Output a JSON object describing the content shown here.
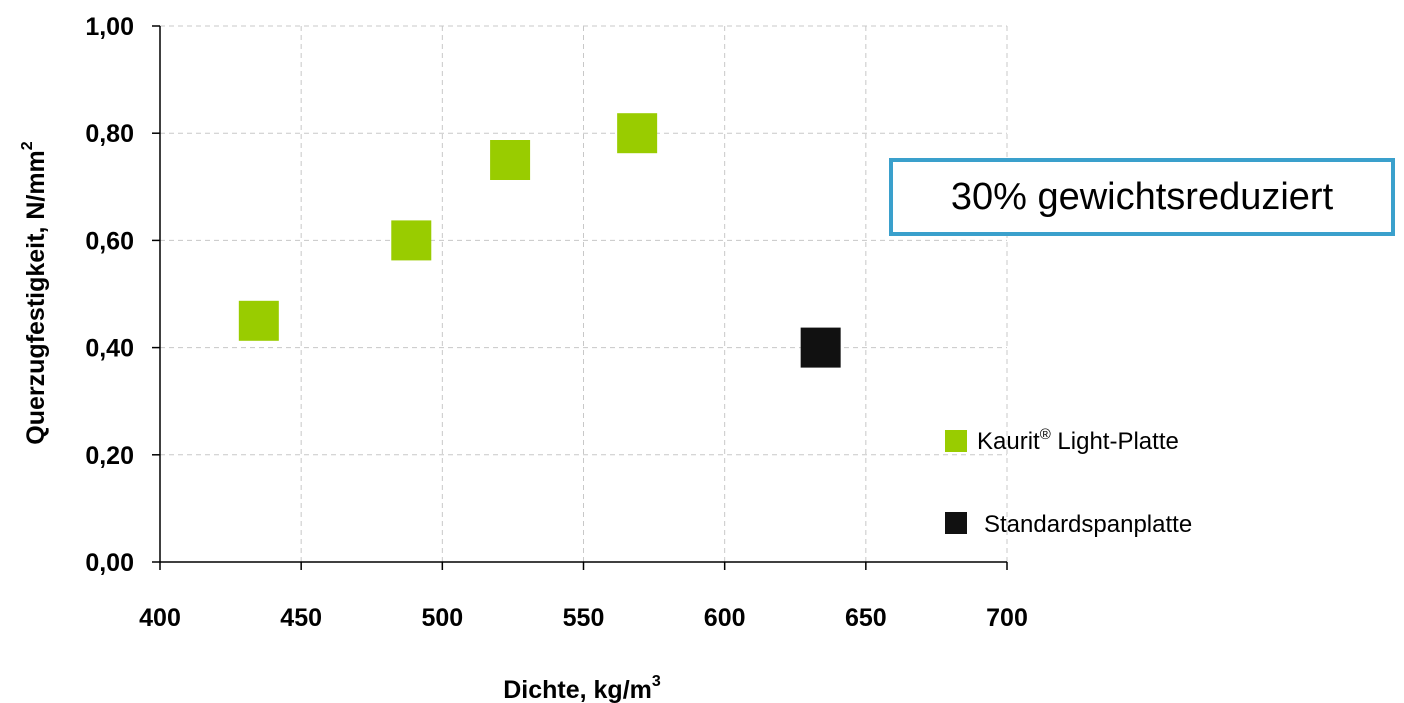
{
  "chart_data": {
    "type": "scatter",
    "xlabel": "Dichte, kg/m",
    "xlabel_sup": "3",
    "ylabel": "Querzugfestigkeit, N/mm",
    "ylabel_sup": "2",
    "xlim": [
      400,
      700
    ],
    "ylim": [
      0,
      1
    ],
    "x_ticks": [
      400,
      450,
      500,
      550,
      600,
      650,
      700
    ],
    "x_tick_labels": [
      "400",
      "450",
      "500",
      "550",
      "600",
      "650",
      "700"
    ],
    "y_ticks": [
      0,
      0.2,
      0.4,
      0.6,
      0.8,
      1.0
    ],
    "y_tick_labels": [
      "0,00",
      "0,20",
      "0,40",
      "0,60",
      "0,80",
      "1,00"
    ],
    "grid": true,
    "legend_position": "right",
    "series": [
      {
        "name": "Kaurit",
        "name_sup": "®",
        "name_suffix": " Light-Platte",
        "color": "#99cc00",
        "marker": "square",
        "points": [
          {
            "x": 435,
            "y": 0.45
          },
          {
            "x": 489,
            "y": 0.6
          },
          {
            "x": 524,
            "y": 0.75
          },
          {
            "x": 569,
            "y": 0.8
          }
        ]
      },
      {
        "name": "Standardspanplatte",
        "color": "#111111",
        "marker": "square",
        "points": [
          {
            "x": 634,
            "y": 0.4
          }
        ]
      }
    ],
    "annotations": [
      {
        "text": "30% gewichtsreduziert",
        "border_color": "#3aa0cc"
      }
    ]
  }
}
